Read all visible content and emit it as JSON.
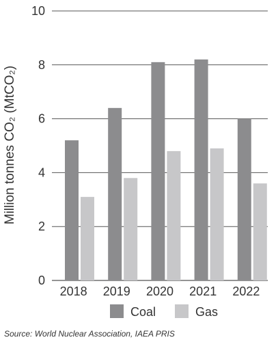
{
  "chart_data": {
    "type": "bar",
    "categories": [
      "2018",
      "2019",
      "2020",
      "2021",
      "2022"
    ],
    "series": [
      {
        "name": "Coal",
        "values": [
          5.2,
          6.4,
          8.1,
          8.2,
          6.0
        ]
      },
      {
        "name": "Gas",
        "values": [
          3.1,
          3.8,
          4.8,
          4.9,
          3.6
        ]
      }
    ],
    "ylabel": "Million tonnes CO₂ (MtCO₂)",
    "xlabel": "",
    "ylim": [
      0,
      10
    ],
    "yticks": [
      0,
      2,
      4,
      6,
      8,
      10
    ],
    "grid": true,
    "legend": "bottom"
  },
  "colors": {
    "Coal": "#8c8c8e",
    "Gas": "#c7c7c9",
    "grid": "#555555",
    "text": "#333333"
  },
  "source": "Source: World Nuclear Association, IAEA PRIS"
}
